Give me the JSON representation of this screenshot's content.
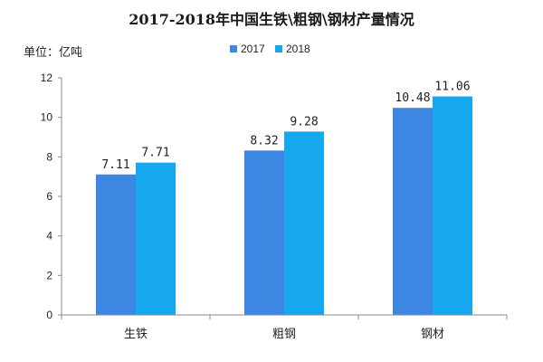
{
  "chart_data": {
    "type": "bar",
    "title": "2017-2018年中国生铁\\粗钢\\钢材产量情况",
    "ylabel": "单位：亿吨",
    "categories": [
      "生铁",
      "粗钢",
      "钢材"
    ],
    "series": [
      {
        "name": "2017",
        "values": [
          7.11,
          8.32,
          10.48
        ],
        "labels": [
          "7.11",
          "8.32",
          "10.48"
        ],
        "color": "#3d86e2"
      },
      {
        "name": "2018",
        "values": [
          7.71,
          9.28,
          11.06
        ],
        "labels": [
          "7.71",
          "9.28",
          "11.06"
        ],
        "color": "#16a8ee"
      }
    ],
    "ylim": [
      0,
      12
    ],
    "yticks": [
      "0",
      "2",
      "4",
      "6",
      "8",
      "10",
      "12"
    ],
    "grid": false,
    "legend": "top-center"
  }
}
